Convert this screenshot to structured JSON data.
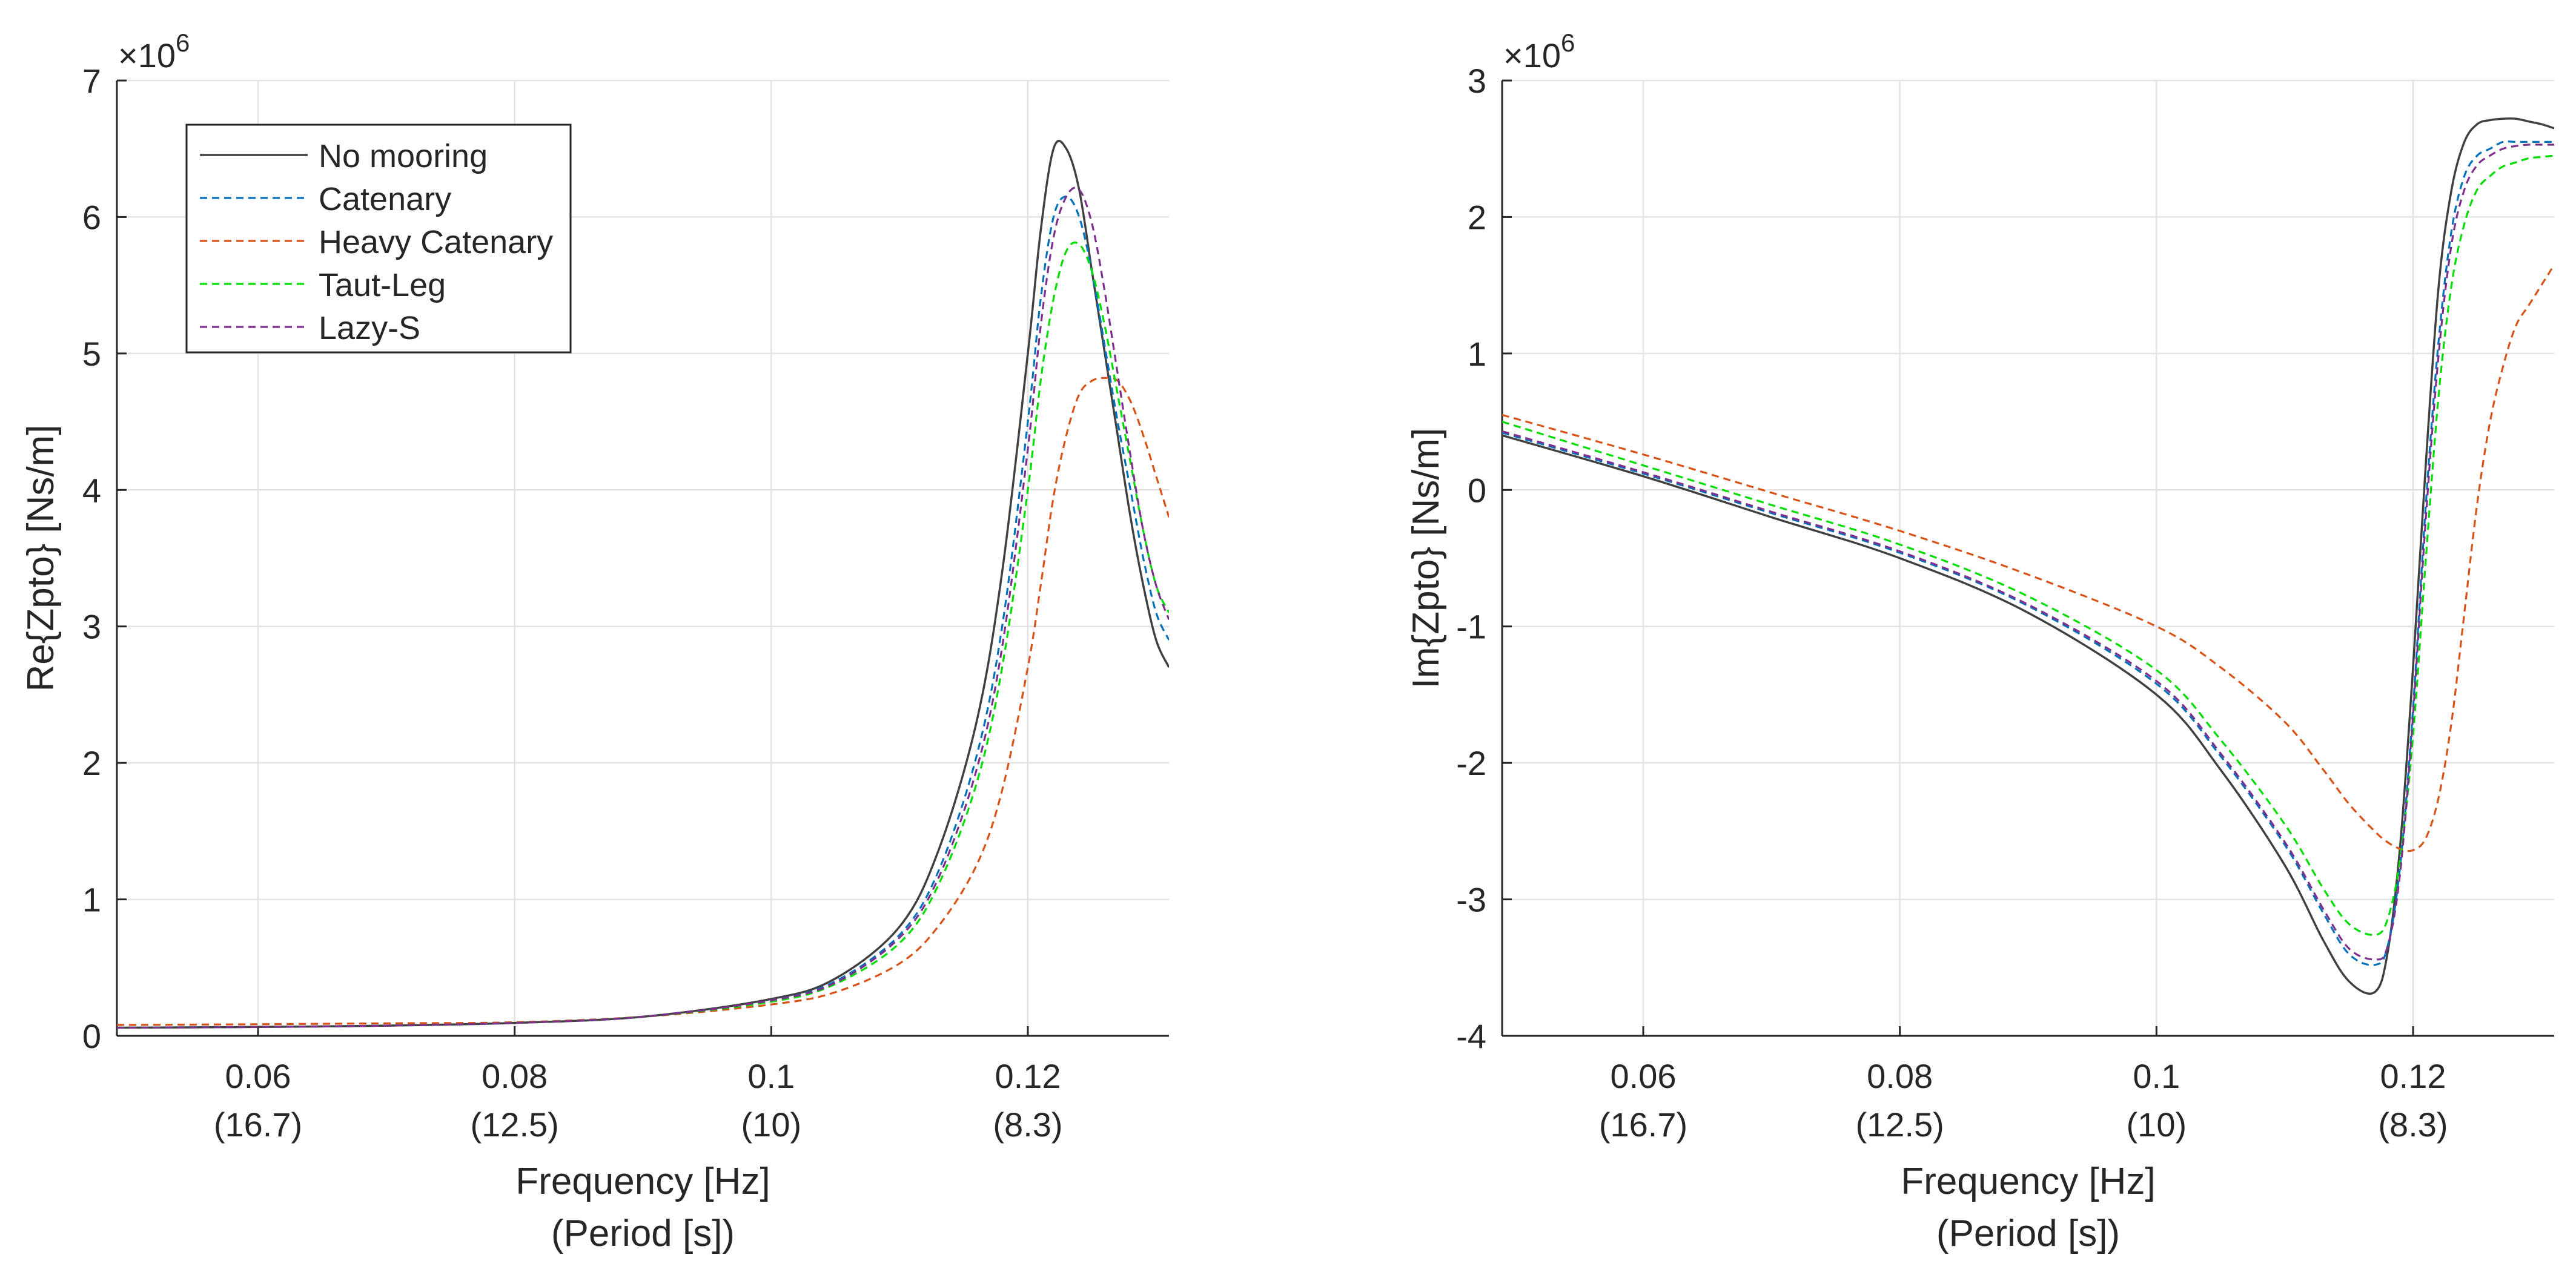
{
  "chart_data": [
    {
      "type": "line",
      "xlabel": "Frequency [Hz]",
      "xlabel2": "(Period [s])",
      "ylabel": "Re{Zpto} [Ns/m]",
      "exponent_base": "×10",
      "exponent_power": "6",
      "xlim": [
        0.049,
        0.131
      ],
      "ylim": [
        0,
        7
      ],
      "grid": true,
      "legend_position": "top-left",
      "xticks": [
        0.06,
        0.08,
        0.1,
        0.12
      ],
      "xtick_labels": [
        "0.06",
        "0.08",
        "0.1",
        "0.12"
      ],
      "xtick_period_labels": [
        "(16.7)",
        "(12.5)",
        "(10)",
        "(8.3)"
      ],
      "yticks": [
        0,
        1,
        2,
        3,
        4,
        5,
        6,
        7
      ],
      "ytick_labels": [
        "0",
        "1",
        "2",
        "3",
        "4",
        "5",
        "6",
        "7"
      ],
      "x": [
        0.049,
        0.06,
        0.07,
        0.08,
        0.09,
        0.1,
        0.105,
        0.11,
        0.113,
        0.116,
        0.118,
        0.12,
        0.121,
        0.122,
        0.123,
        0.124,
        0.125,
        0.126,
        0.127,
        0.128,
        0.129,
        0.13,
        0.131
      ],
      "series": [
        {
          "name": "No mooring",
          "color": "#404040",
          "dash": "solid",
          "values": [
            0.06,
            0.065,
            0.075,
            0.095,
            0.14,
            0.27,
            0.42,
            0.8,
            1.35,
            2.3,
            3.4,
            5.0,
            5.9,
            6.5,
            6.5,
            6.2,
            5.6,
            5.0,
            4.4,
            3.8,
            3.3,
            2.9,
            2.7
          ]
        },
        {
          "name": "Catenary",
          "color": "#0072BD",
          "dash": "dashed",
          "values": [
            0.06,
            0.065,
            0.075,
            0.095,
            0.14,
            0.26,
            0.4,
            0.74,
            1.2,
            2.05,
            3.0,
            4.5,
            5.4,
            6.0,
            6.15,
            6.0,
            5.6,
            5.05,
            4.5,
            4.0,
            3.5,
            3.1,
            2.9
          ]
        },
        {
          "name": "Heavy Catenary",
          "color": "#D95319",
          "dash": "dashed",
          "values": [
            0.08,
            0.085,
            0.092,
            0.1,
            0.14,
            0.23,
            0.32,
            0.53,
            0.8,
            1.25,
            1.8,
            2.7,
            3.3,
            3.95,
            4.4,
            4.7,
            4.8,
            4.82,
            4.8,
            4.65,
            4.4,
            4.1,
            3.8
          ]
        },
        {
          "name": "Taut-Leg",
          "color": "#00DD00",
          "dash": "dashed",
          "values": [
            0.06,
            0.065,
            0.075,
            0.095,
            0.14,
            0.25,
            0.38,
            0.68,
            1.1,
            1.85,
            2.7,
            4.0,
            4.8,
            5.4,
            5.75,
            5.8,
            5.6,
            5.2,
            4.7,
            4.2,
            3.7,
            3.3,
            3.1
          ]
        },
        {
          "name": "Lazy-S",
          "color": "#7E2F8E",
          "dash": "dashed",
          "values": [
            0.06,
            0.065,
            0.075,
            0.095,
            0.14,
            0.26,
            0.39,
            0.72,
            1.15,
            1.95,
            2.85,
            4.3,
            5.2,
            5.85,
            6.15,
            6.2,
            5.95,
            5.45,
            4.85,
            4.25,
            3.7,
            3.3,
            3.05
          ]
        }
      ]
    },
    {
      "type": "line",
      "xlabel": "Frequency [Hz]",
      "xlabel2": "(Period [s])",
      "ylabel": "Im{Zpto} [Ns/m]",
      "exponent_base": "×10",
      "exponent_power": "6",
      "xlim": [
        0.049,
        0.131
      ],
      "ylim": [
        -4,
        3
      ],
      "grid": true,
      "xticks": [
        0.06,
        0.08,
        0.1,
        0.12
      ],
      "xtick_labels": [
        "0.06",
        "0.08",
        "0.1",
        "0.12"
      ],
      "xtick_period_labels": [
        "(16.7)",
        "(12.5)",
        "(10)",
        "(8.3)"
      ],
      "yticks": [
        -4,
        -3,
        -2,
        -1,
        0,
        1,
        2,
        3
      ],
      "ytick_labels": [
        "-4",
        "-3",
        "-2",
        "-1",
        "0",
        "1",
        "2",
        "3"
      ],
      "x": [
        0.049,
        0.06,
        0.07,
        0.08,
        0.09,
        0.1,
        0.105,
        0.11,
        0.113,
        0.115,
        0.117,
        0.118,
        0.119,
        0.12,
        0.121,
        0.122,
        0.123,
        0.124,
        0.125,
        0.126,
        0.127,
        0.128,
        0.129,
        0.13,
        0.131
      ],
      "series": [
        {
          "name": "No mooring",
          "color": "#404040",
          "dash": "solid",
          "values": [
            0.4,
            0.1,
            -0.2,
            -0.5,
            -0.9,
            -1.5,
            -2.05,
            -2.75,
            -3.3,
            -3.6,
            -3.68,
            -3.4,
            -2.6,
            -1.3,
            0.2,
            1.5,
            2.2,
            2.55,
            2.68,
            2.71,
            2.72,
            2.72,
            2.7,
            2.68,
            2.65
          ]
        },
        {
          "name": "Catenary",
          "color": "#0072BD",
          "dash": "dashed",
          "values": [
            0.42,
            0.12,
            -0.17,
            -0.46,
            -0.85,
            -1.42,
            -1.95,
            -2.6,
            -3.1,
            -3.4,
            -3.48,
            -3.35,
            -2.75,
            -1.6,
            -0.1,
            1.1,
            1.9,
            2.3,
            2.45,
            2.5,
            2.55,
            2.55,
            2.55,
            2.55,
            2.55
          ]
        },
        {
          "name": "Heavy Catenary",
          "color": "#D95319",
          "dash": "dashed",
          "values": [
            0.55,
            0.26,
            -0.02,
            -0.3,
            -0.62,
            -1.0,
            -1.3,
            -1.7,
            -2.05,
            -2.3,
            -2.5,
            -2.58,
            -2.63,
            -2.64,
            -2.55,
            -2.25,
            -1.7,
            -0.9,
            -0.1,
            0.5,
            0.9,
            1.2,
            1.35,
            1.5,
            1.65
          ]
        },
        {
          "name": "Taut-Leg",
          "color": "#00DD00",
          "dash": "dashed",
          "values": [
            0.5,
            0.18,
            -0.11,
            -0.4,
            -0.78,
            -1.32,
            -1.83,
            -2.45,
            -2.92,
            -3.18,
            -3.26,
            -3.15,
            -2.7,
            -1.8,
            -0.5,
            0.7,
            1.5,
            1.95,
            2.2,
            2.3,
            2.37,
            2.4,
            2.43,
            2.44,
            2.45
          ]
        },
        {
          "name": "Lazy-S",
          "color": "#7E2F8E",
          "dash": "dashed",
          "values": [
            0.43,
            0.13,
            -0.16,
            -0.45,
            -0.84,
            -1.4,
            -1.93,
            -2.58,
            -3.07,
            -3.36,
            -3.44,
            -3.35,
            -2.8,
            -1.65,
            -0.2,
            1.0,
            1.8,
            2.2,
            2.38,
            2.45,
            2.5,
            2.52,
            2.53,
            2.53,
            2.53
          ]
        }
      ]
    }
  ]
}
